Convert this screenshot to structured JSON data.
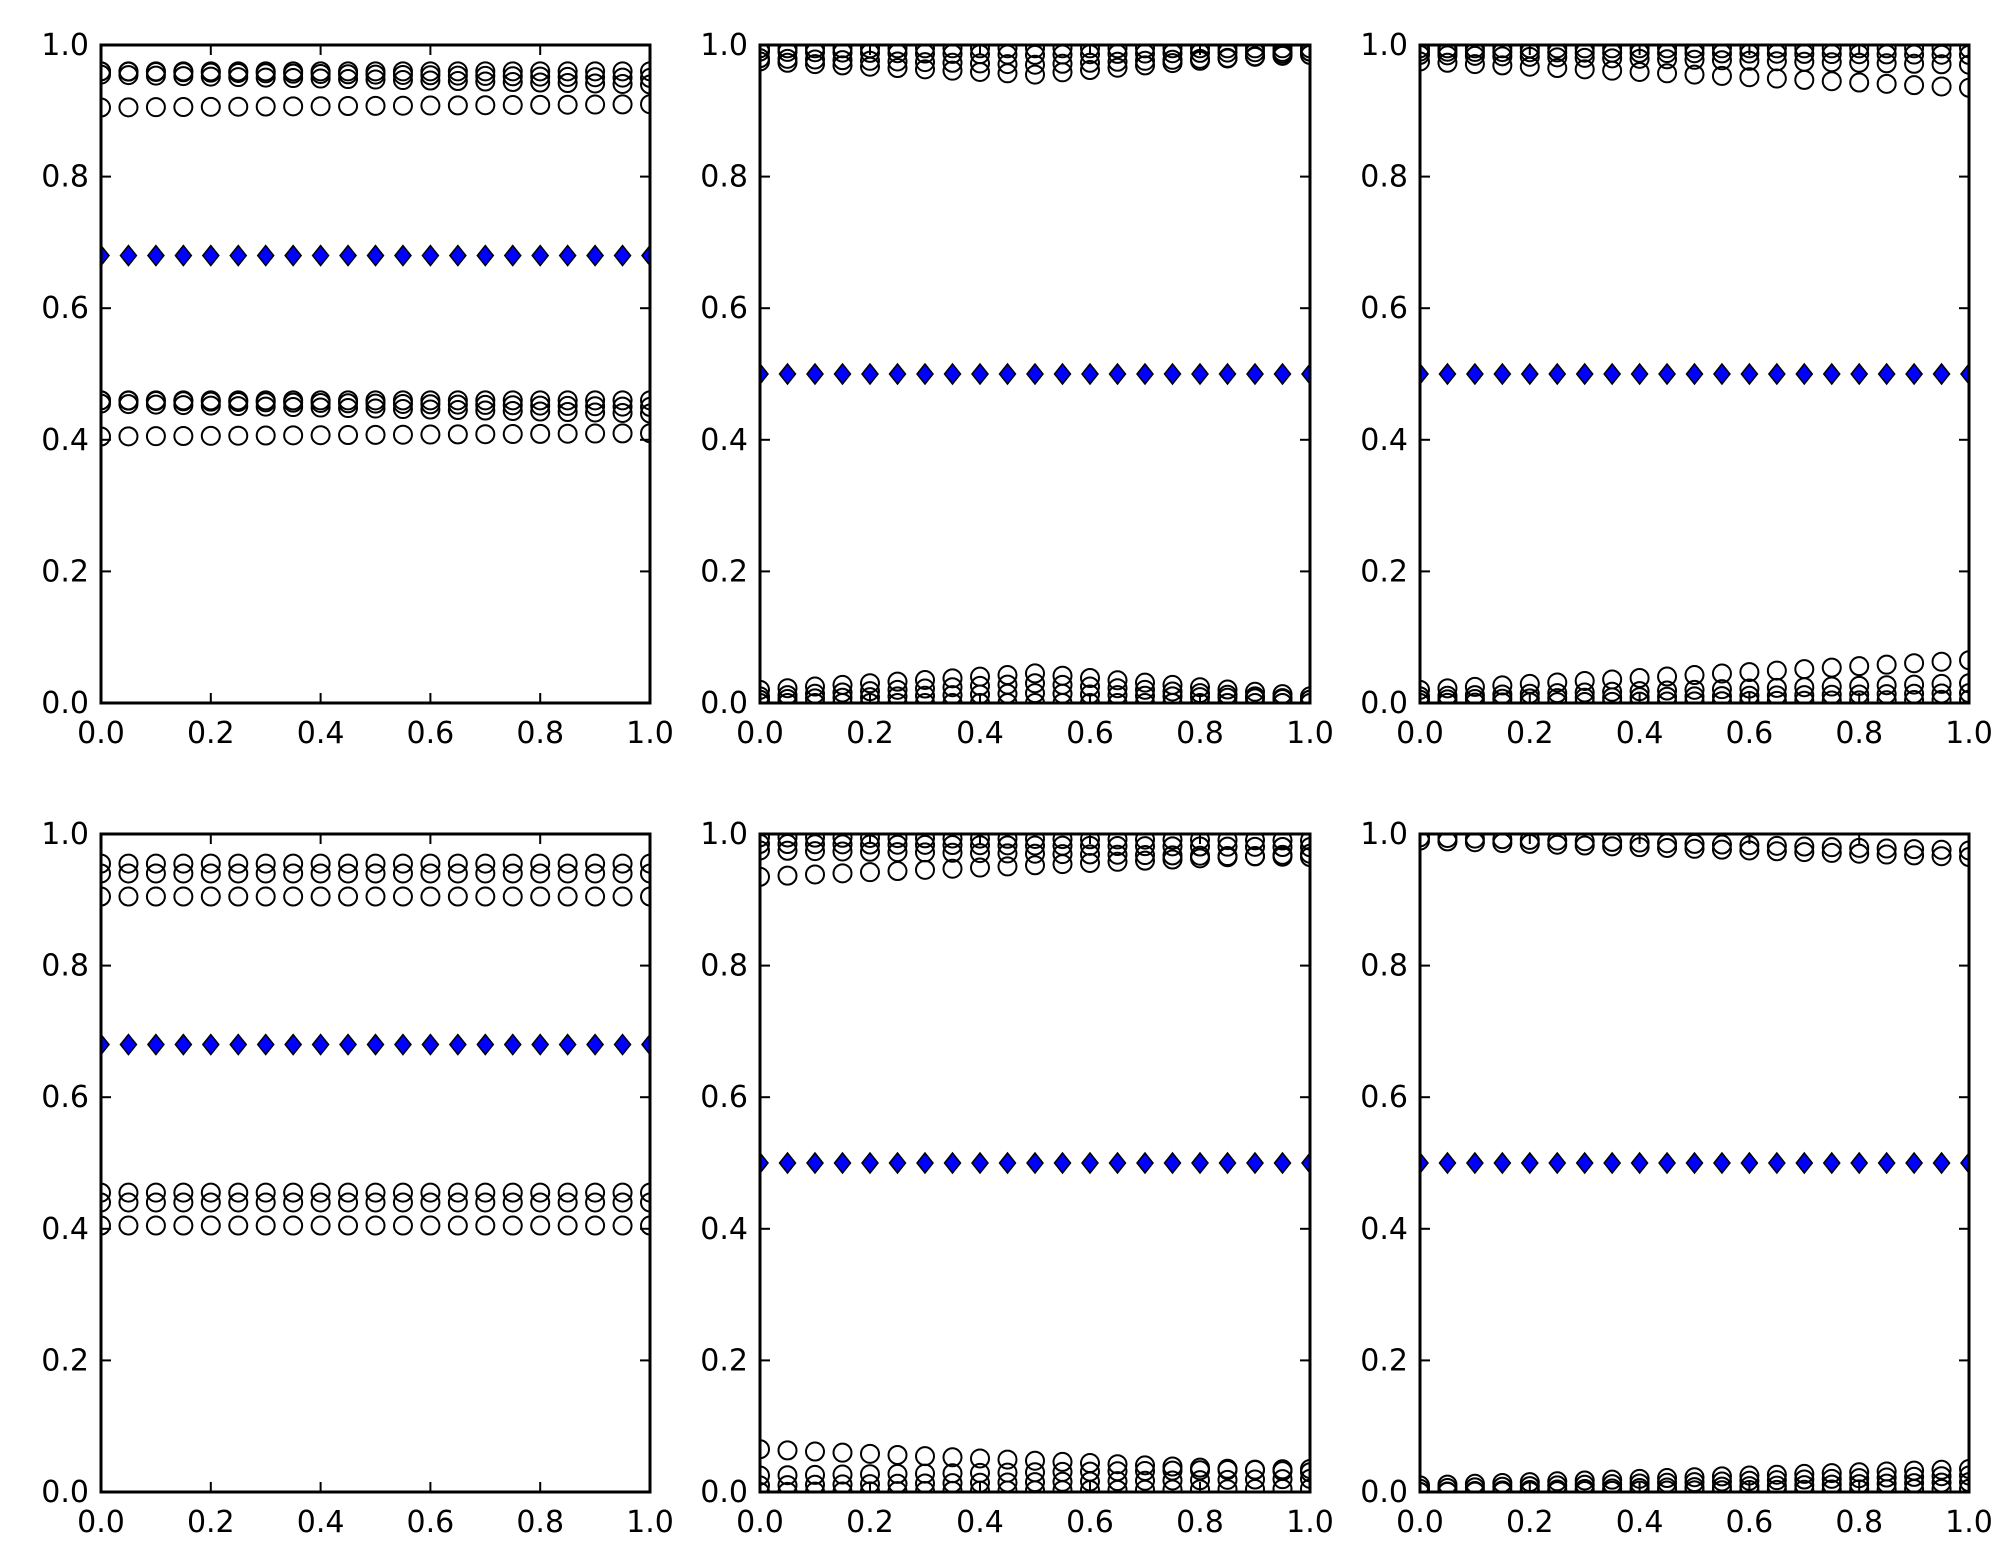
{
  "figure": {
    "marker_colors": {
      "circle_edge": "#000000",
      "diamond_face": "#0000ff",
      "diamond_edge": "#000000"
    },
    "tick_values": [
      "0.0",
      "0.2",
      "0.4",
      "0.6",
      "0.8",
      "1.0"
    ]
  },
  "chart_data": [
    {
      "type": "scatter",
      "position": "top-left",
      "xlim": [
        0,
        1
      ],
      "ylim": [
        0,
        1
      ],
      "grid": false,
      "xticks": [
        "0.0",
        "0.2",
        "0.4",
        "0.6",
        "0.8",
        "1.0"
      ],
      "yticks": [
        "0.0",
        "0.2",
        "0.4",
        "0.6",
        "0.8",
        "1.0"
      ],
      "x": {
        "start": 0,
        "step": 0.05,
        "count": 21
      },
      "diamond_series": [
        {
          "y_start": 0.68,
          "y_end": 0.68
        }
      ],
      "circle_series": [
        {
          "y_start": 0.96,
          "y_end": 0.96
        },
        {
          "y_start": 0.96,
          "y_end": 0.95
        },
        {
          "y_start": 0.955,
          "y_end": 0.94
        },
        {
          "y_start": 0.905,
          "y_end": 0.91
        },
        {
          "y_start": 0.46,
          "y_end": 0.46
        },
        {
          "y_start": 0.46,
          "y_end": 0.45
        },
        {
          "y_start": 0.455,
          "y_end": 0.44
        },
        {
          "y_start": 0.405,
          "y_end": 0.41
        }
      ]
    },
    {
      "type": "scatter",
      "position": "top-center",
      "xlim": [
        0,
        1
      ],
      "ylim": [
        0,
        1
      ],
      "grid": false,
      "xticks": [
        "0.0",
        "0.2",
        "0.4",
        "0.6",
        "0.8",
        "1.0"
      ],
      "yticks": [
        "0.0",
        "0.2",
        "0.4",
        "0.6",
        "0.8",
        "1.0"
      ],
      "x": {
        "start": 0,
        "step": 0.05,
        "count": 21
      },
      "diamond_series": [
        {
          "y_start": 0.5,
          "y_end": 0.5
        }
      ],
      "circle_series": [
        {
          "y_start": 0.995,
          "y_end": 0.995
        },
        {
          "y_start": 0.99,
          "y_mid": 0.985,
          "y_end": 0.99
        },
        {
          "y_start": 0.98,
          "y_mid": 0.97,
          "y_end": 0.985
        },
        {
          "y_start": 0.975,
          "y_mid": 0.955,
          "y_end": 0.99
        },
        {
          "y_start": 0.02,
          "y_mid": 0.045,
          "y_end": 0.01
        },
        {
          "y_start": 0.01,
          "y_mid": 0.03,
          "y_end": 0.005
        },
        {
          "y_start": 0.005,
          "y_mid": 0.015,
          "y_end": 0.005
        },
        {
          "y_start": 0.0,
          "y_end": 0.0
        }
      ]
    },
    {
      "type": "scatter",
      "position": "top-right",
      "xlim": [
        0,
        1
      ],
      "ylim": [
        0,
        1
      ],
      "grid": false,
      "xticks": [
        "0.0",
        "0.2",
        "0.4",
        "0.6",
        "0.8",
        "1.0"
      ],
      "yticks": [
        "0.0",
        "0.2",
        "0.4",
        "0.6",
        "0.8",
        "1.0"
      ],
      "x": {
        "start": 0,
        "step": 0.05,
        "count": 21
      },
      "diamond_series": [
        {
          "y_start": 0.5,
          "y_end": 0.5
        }
      ],
      "circle_series": [
        {
          "y_start": 0.995,
          "y_end": 0.995
        },
        {
          "y_start": 0.99,
          "y_end": 0.985
        },
        {
          "y_start": 0.985,
          "y_end": 0.97
        },
        {
          "y_start": 0.975,
          "y_end": 0.935
        },
        {
          "y_start": 0.02,
          "y_end": 0.065
        },
        {
          "y_start": 0.01,
          "y_end": 0.03
        },
        {
          "y_start": 0.005,
          "y_end": 0.015
        },
        {
          "y_start": 0.0,
          "y_end": 0.005
        }
      ]
    },
    {
      "type": "scatter",
      "position": "bottom-left",
      "xlim": [
        0,
        1
      ],
      "ylim": [
        0,
        1
      ],
      "grid": false,
      "xticks": [
        "0.0",
        "0.2",
        "0.4",
        "0.6",
        "0.8",
        "1.0"
      ],
      "yticks": [
        "0.0",
        "0.2",
        "0.4",
        "0.6",
        "0.8",
        "1.0"
      ],
      "x": {
        "start": 0,
        "step": 0.05,
        "count": 21
      },
      "diamond_series": [
        {
          "y_start": 0.68,
          "y_end": 0.68
        }
      ],
      "circle_series": [
        {
          "y_start": 0.955,
          "y_end": 0.955
        },
        {
          "y_start": 0.94,
          "y_end": 0.94
        },
        {
          "y_start": 0.905,
          "y_end": 0.905
        },
        {
          "y_start": 0.455,
          "y_end": 0.455
        },
        {
          "y_start": 0.44,
          "y_end": 0.44
        },
        {
          "y_start": 0.405,
          "y_end": 0.405
        }
      ]
    },
    {
      "type": "scatter",
      "position": "bottom-center",
      "xlim": [
        0,
        1
      ],
      "ylim": [
        0,
        1
      ],
      "grid": false,
      "xticks": [
        "0.0",
        "0.2",
        "0.4",
        "0.6",
        "0.8",
        "1.0"
      ],
      "yticks": [
        "0.0",
        "0.2",
        "0.4",
        "0.6",
        "0.8",
        "1.0"
      ],
      "x": {
        "start": 0,
        "step": 0.05,
        "count": 21
      },
      "diamond_series": [
        {
          "y_start": 0.5,
          "y_end": 0.5
        }
      ],
      "circle_series": [
        {
          "y_start": 0.995,
          "y_end": 0.99
        },
        {
          "y_start": 0.985,
          "y_end": 0.98
        },
        {
          "y_start": 0.975,
          "y_end": 0.965
        },
        {
          "y_start": 0.935,
          "y_end": 0.97
        },
        {
          "y_start": 0.065,
          "y_end": 0.03
        },
        {
          "y_start": 0.025,
          "y_end": 0.035
        },
        {
          "y_start": 0.01,
          "y_end": 0.02
        },
        {
          "y_start": 0.0,
          "y_end": 0.005
        }
      ]
    },
    {
      "type": "scatter",
      "position": "bottom-right",
      "xlim": [
        0,
        1
      ],
      "ylim": [
        0,
        1
      ],
      "grid": false,
      "xticks": [
        "0.0",
        "0.2",
        "0.4",
        "0.6",
        "0.8",
        "1.0"
      ],
      "yticks": [
        "0.0",
        "0.2",
        "0.4",
        "0.6",
        "0.8",
        "1.0"
      ],
      "x": {
        "start": 0,
        "step": 0.05,
        "count": 21
      },
      "diamond_series": [
        {
          "y_start": 0.5,
          "y_end": 0.5
        }
      ],
      "circle_series": [
        {
          "y_start": 0.995,
          "y_end": 0.975
        },
        {
          "y_start": 0.99,
          "y_end": 0.965
        },
        {
          "y_start": 0.01,
          "y_end": 0.035
        },
        {
          "y_start": 0.005,
          "y_end": 0.025
        },
        {
          "y_start": 0.0,
          "y_end": 0.015
        },
        {
          "y_start": 0.0,
          "y_end": 0.005
        }
      ]
    }
  ]
}
